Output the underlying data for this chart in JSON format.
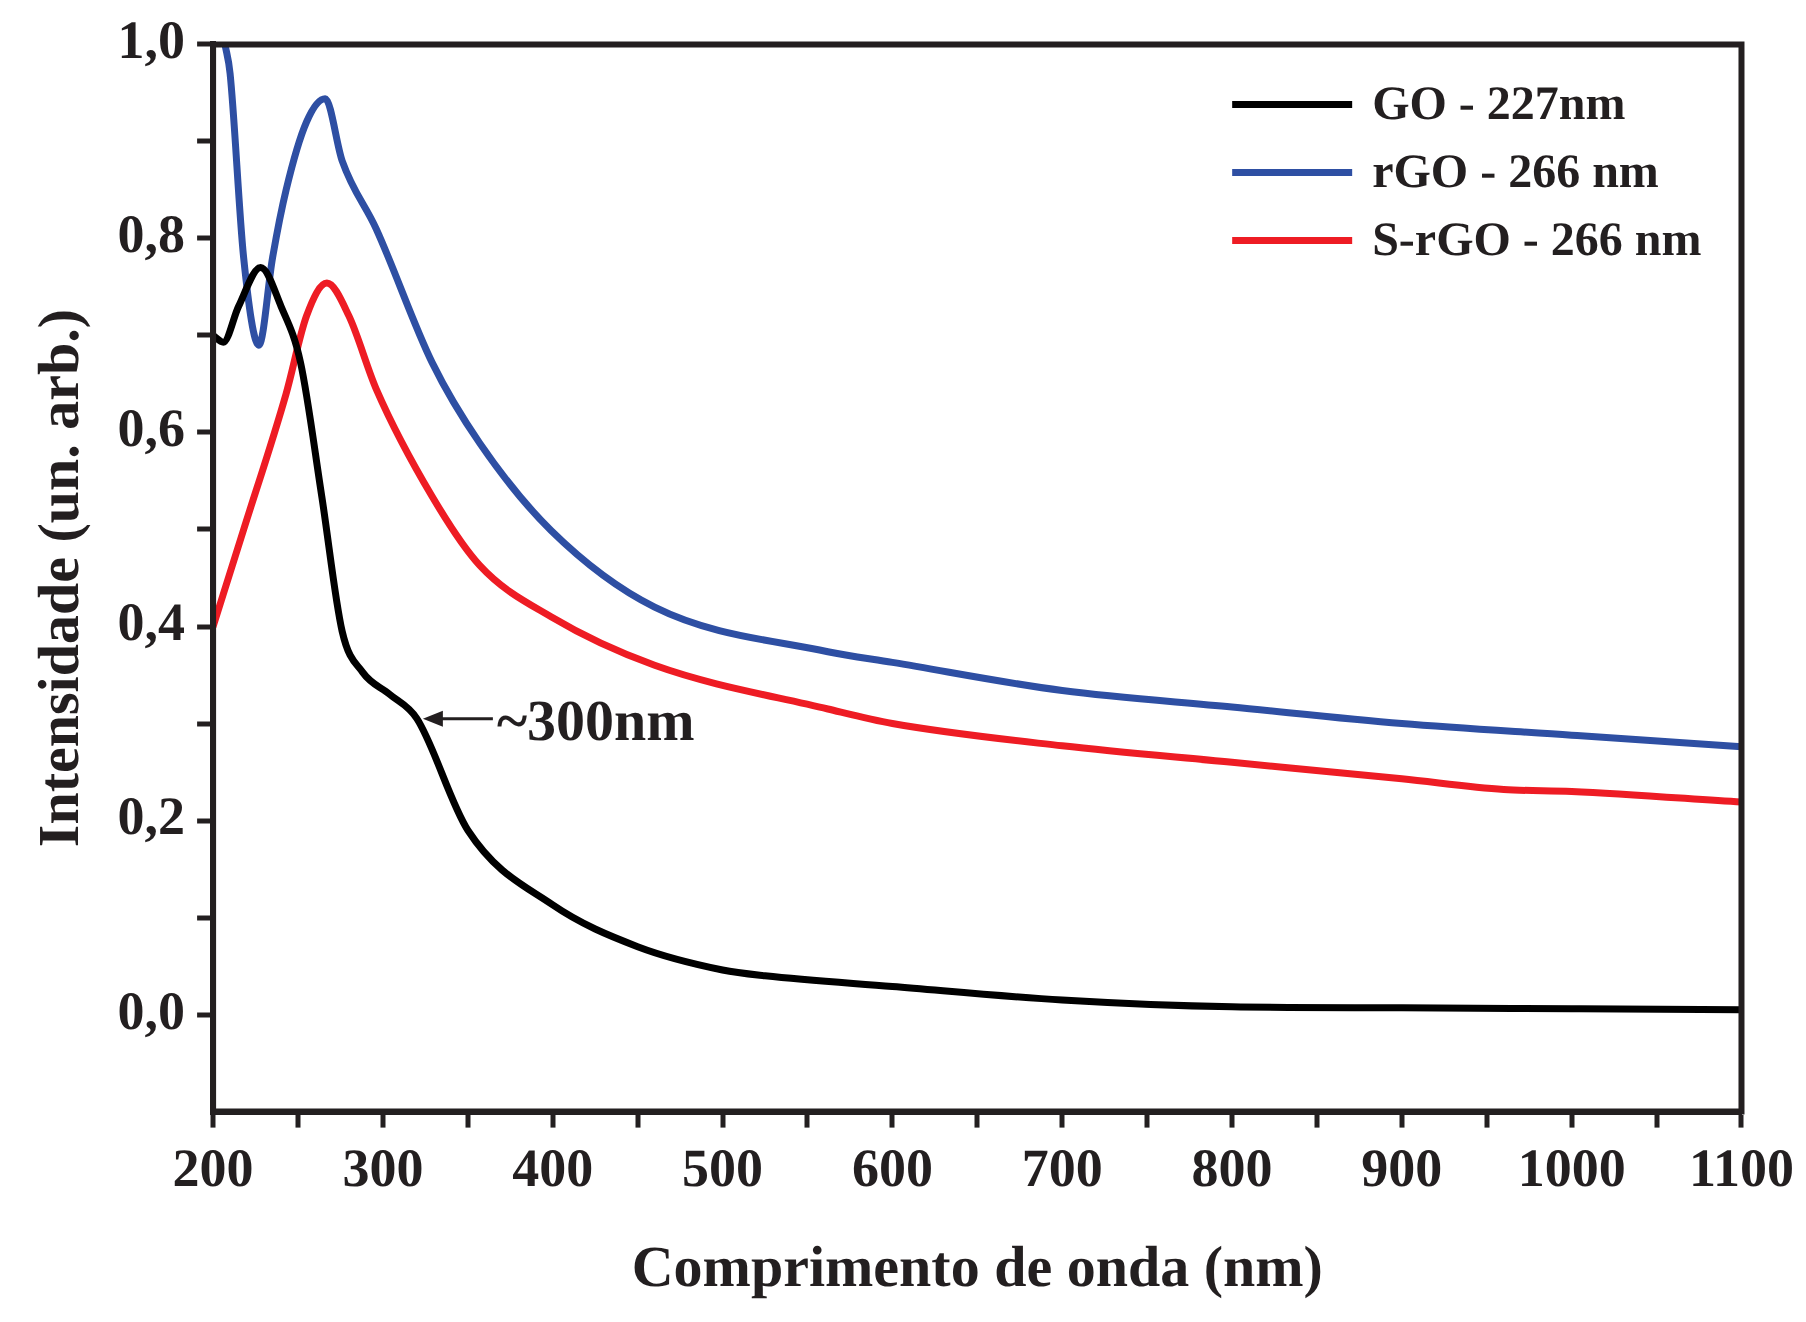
{
  "chart_data": {
    "type": "line",
    "xlabel": "Comprimento de onda (nm)",
    "ylabel": "Intensidade (un. arb.)",
    "xlim": [
      200,
      1100
    ],
    "ylim": [
      -0.1,
      1.0
    ],
    "xticks": [
      200,
      {
        "value": 250,
        "label": null
      },
      300,
      {
        "value": 350,
        "label": null
      },
      400,
      {
        "value": 450,
        "label": null
      },
      500,
      {
        "value": 550,
        "label": null
      },
      600,
      {
        "value": 650,
        "label": null
      },
      700,
      {
        "value": 750,
        "label": null
      },
      800,
      {
        "value": 850,
        "label": null
      },
      900,
      {
        "value": 950,
        "label": null
      },
      1000,
      {
        "value": 1050,
        "label": null
      },
      1100
    ],
    "yticks": [
      {
        "value": 0,
        "label": "0,0"
      },
      {
        "value": 0.1,
        "label": null
      },
      {
        "value": 0.2,
        "label": "0,2"
      },
      {
        "value": 0.3,
        "label": null
      },
      {
        "value": 0.4,
        "label": "0,4"
      },
      {
        "value": 0.5,
        "label": null
      },
      {
        "value": 0.6,
        "label": "0,6"
      },
      {
        "value": 0.7,
        "label": null
      },
      {
        "value": 0.8,
        "label": "0,8"
      },
      {
        "value": 0.9,
        "label": null
      },
      {
        "value": 1.0,
        "label": "1,0"
      }
    ],
    "grid": false,
    "legend": "top right",
    "marker": "none",
    "line_style": "solid",
    "annotations": [
      {
        "text": "~300nm",
        "x": 320,
        "y": 0.305
      }
    ],
    "series": [
      {
        "name": "GO - 227nm",
        "color": "#000000",
        "x": [
          200,
          206,
          215,
          228,
          240,
          251.5,
          264,
          276,
          288,
          304,
          320,
          350,
          400,
          450,
          500,
          525,
          600,
          700,
          800,
          900,
          1000,
          1100
        ],
        "values": [
          0.7,
          0.693,
          0.73,
          0.77,
          0.73,
          0.672,
          0.534,
          0.395,
          0.353,
          0.33,
          0.305,
          0.19,
          0.113,
          0.07,
          0.046,
          0.04,
          0.029,
          0.015,
          0.008,
          0.007,
          0.006,
          0.005
        ]
      },
      {
        "name": "rGO - 266 nm",
        "color": "#2e4fa3",
        "x": [
          207,
          210,
          218,
          227,
          235,
          243,
          255,
          266,
          276,
          296,
          329,
          357,
          399,
          460,
          562,
          600,
          700,
          800,
          900,
          1000,
          1100
        ],
        "values": [
          1.0,
          0.97,
          0.78,
          0.69,
          0.78,
          0.85,
          0.92,
          0.944,
          0.88,
          0.81,
          0.672,
          0.589,
          0.499,
          0.42,
          0.374,
          0.363,
          0.334,
          0.317,
          0.3,
          0.288,
          0.276
        ]
      },
      {
        "name": "S-rGO - 266 nm",
        "color": "#ee1c24",
        "x": [
          200,
          218,
          243,
          255,
          267,
          280,
          296,
          329,
          357,
          399,
          460,
          562,
          600,
          700,
          800,
          900,
          960,
          1000,
          1100
        ],
        "values": [
          0.4,
          0.5,
          0.64,
          0.72,
          0.754,
          0.72,
          0.645,
          0.534,
          0.463,
          0.41,
          0.36,
          0.315,
          0.3,
          0.277,
          0.26,
          0.243,
          0.232,
          0.23,
          0.219
        ]
      }
    ]
  }
}
